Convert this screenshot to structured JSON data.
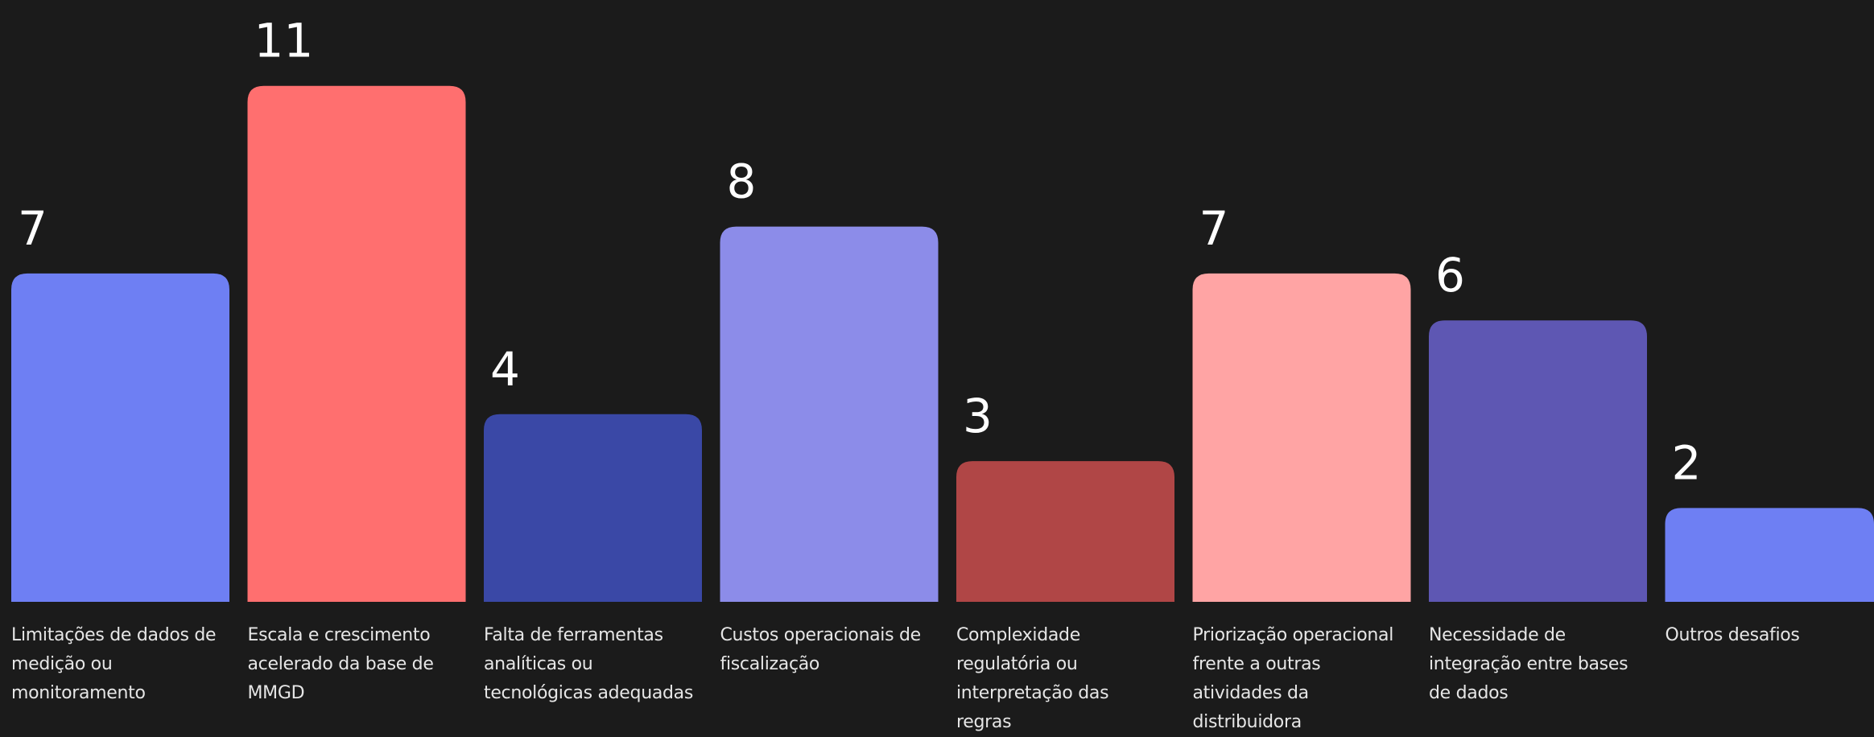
{
  "chart_data": {
    "type": "bar",
    "categories": [
      "Limitações de dados de medição ou monitoramento",
      "Escala e crescimento acelerado da base de MMGD",
      "Falta de ferramentas analíticas ou tecnológicas adequadas",
      "Custos operacionais de fiscalização",
      "Complexidade regulatória ou interpretação das regras",
      "Priorização operacional frente a outras atividades da distribuidora",
      "Necessidade de integração entre bases de dados",
      "Outros desafios"
    ],
    "values": [
      7,
      11,
      4,
      8,
      3,
      7,
      6,
      2
    ],
    "value_labels": [
      "7",
      "11",
      "4",
      "8",
      "3",
      "7",
      "6",
      "2"
    ],
    "colors": [
      "#6e7ff3",
      "#ff6f6f",
      "#3a48a6",
      "#8c8ce9",
      "#b04646",
      "#ffa4a4",
      "#5e57b3",
      "#6e7ff3"
    ],
    "ylim": [
      0,
      11
    ],
    "grid": false,
    "legend": "none"
  }
}
